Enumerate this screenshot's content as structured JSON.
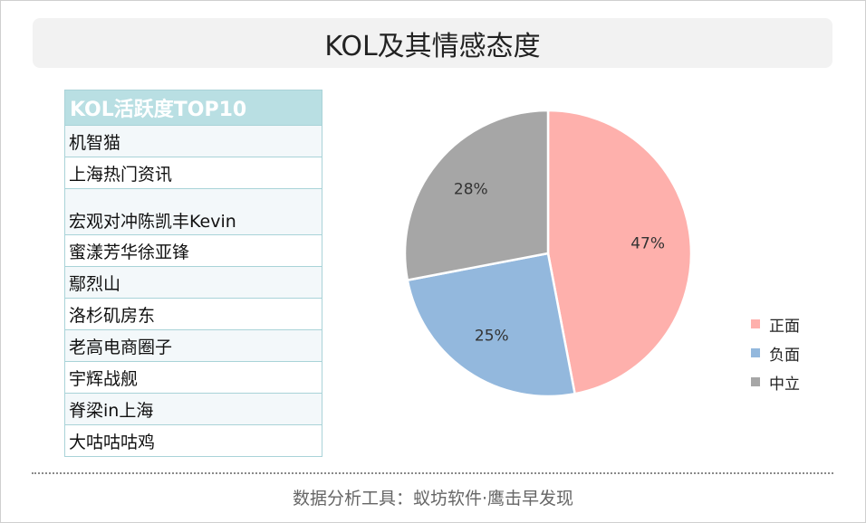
{
  "title": "KOL及其情感态度",
  "kol_table": {
    "header": "KOL活跃度TOP10",
    "rows": [
      "机智猫",
      "上海热门资讯",
      "宏观对冲陈凯丰Kevin",
      "蜜漾芳华徐亚锋",
      "鄢烈山",
      "洛杉矶房东",
      "老高电商圈子",
      "宇辉战舰",
      "脊梁in上海",
      "大咕咕咕鸡"
    ]
  },
  "chart_data": {
    "type": "pie",
    "categories": [
      "正面",
      "负面",
      "中立"
    ],
    "values": [
      47,
      25,
      28
    ],
    "labels": [
      "47%",
      "25%",
      "28%"
    ],
    "colors": [
      "#feb0ac",
      "#93b8dd",
      "#a6a6a6"
    ],
    "legend_position": "right"
  },
  "footer": "数据分析工具：蚁坊软件·鹰击早发现"
}
